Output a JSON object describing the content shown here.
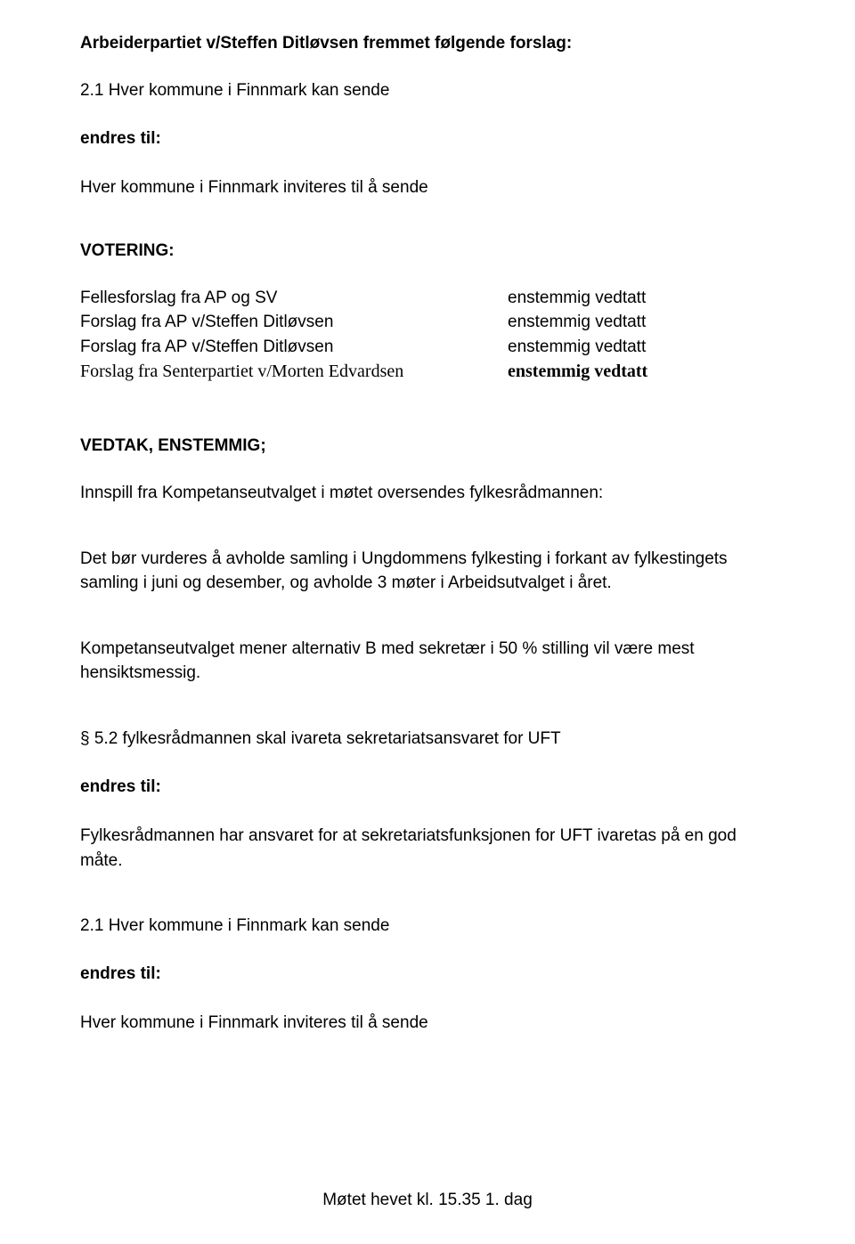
{
  "doc": {
    "title": "Arbeiderpartiet v/Steffen Ditløvsen fremmet følgende forslag:",
    "section1_num": "2.1 Hver kommune i Finnmark kan sende",
    "endres_til": "endres til:",
    "section1_text": "Hver kommune i Finnmark inviteres til å sende",
    "votering": "VOTERING:",
    "rows": [
      {
        "left": "Fellesforslag fra AP og SV",
        "right": "enstemmig vedtatt"
      },
      {
        "left": "Forslag fra AP v/Steffen Ditløvsen",
        "right": "enstemmig vedtatt"
      },
      {
        "left": "Forslag fra AP v/Steffen Ditløvsen",
        "right": "enstemmig vedtatt"
      },
      {
        "left": "Forslag fra Senterpartiet v/Morten Edvardsen",
        "right": "enstemmig vedtatt"
      }
    ],
    "vedtak": "VEDTAK, ENSTEMMIG;",
    "innspill": "Innspill fra Kompetanseutvalget  i møtet oversendes fylkesrådmannen:",
    "para1": "Det bør vurderes å avholde samling i Ungdommens fylkesting i forkant av fylkestingets samling i juni og desember, og avholde 3 møter i Arbeidsutvalget i året.",
    "para2": "Kompetanseutvalget mener alternativ B med sekretær i 50 % stilling vil være mest hensiktsmessig.",
    "s52": "§ 5.2 fylkesrådmannen  skal ivareta sekretariatsansvaret for UFT",
    "s52_text": "Fylkesrådmannen har ansvaret for at sekretariatsfunksjonen for UFT ivaretas på en god måte.",
    "section2_num": "2.1 Hver kommune i Finnmark kan sende",
    "section2_text": "Hver kommune i Finnmark inviteres til å sende",
    "footer": "Møtet hevet kl. 15.35 1. dag"
  }
}
